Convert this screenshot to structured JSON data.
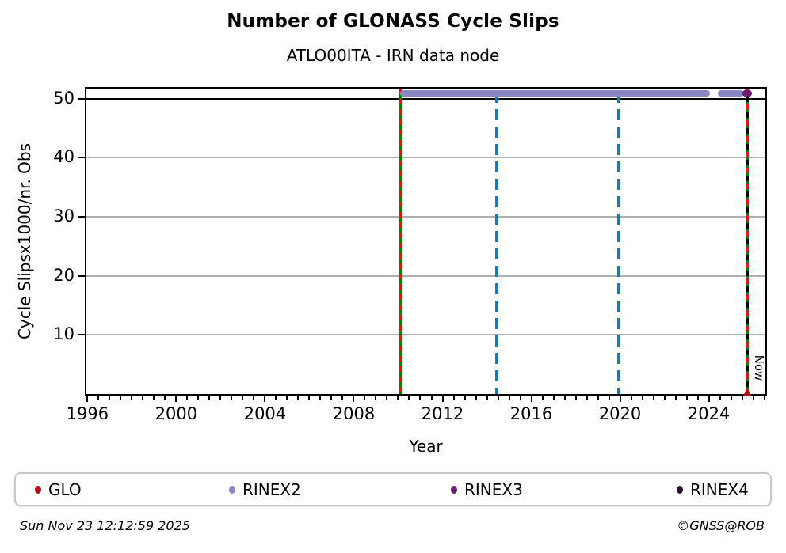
{
  "header": {
    "title": "Number of GLONASS Cycle Slips",
    "subtitle": "ATLO00ITA - IRN data node"
  },
  "footer": {
    "timestamp": "Sun Nov 23 12:12:59 2025",
    "credit": "©GNSS@ROB"
  },
  "legend": {
    "items": [
      {
        "label": "GLO",
        "color": "#b01015"
      },
      {
        "label": "RINEX2",
        "color": "#8a87c5"
      },
      {
        "label": "RINEX3",
        "color": "#6c1d6e"
      },
      {
        "label": "RINEX4",
        "color": "#2e0f35"
      }
    ]
  },
  "chart_data": {
    "type": "scatter",
    "title": "Number of GLONASS Cycle Slips",
    "subtitle": "ATLO00ITA - IRN data node",
    "xlabel": "Year",
    "ylabel": "Cycle Slipsx1000/nr. Obs",
    "xlim": [
      1995.95,
      2026.55
    ],
    "ylim": [
      0,
      51.7
    ],
    "x_major_ticks": [
      1996,
      2000,
      2004,
      2008,
      2012,
      2016,
      2020,
      2024
    ],
    "x_minor_step": 0.5,
    "y_major_ticks": [
      10,
      20,
      30,
      40,
      50
    ],
    "grid": "horizontal",
    "grid_color": "#b0b0b0",
    "hlines": [
      {
        "y": 50,
        "color": "#000000"
      }
    ],
    "vlines": [
      {
        "x": 2010.1,
        "style": "green-red",
        "name": "event-line-2010"
      },
      {
        "x": 2014.45,
        "style": "blue-dashed",
        "name": "event-line-2014"
      },
      {
        "x": 2019.95,
        "style": "blue-dashed",
        "name": "event-line-2020"
      },
      {
        "x": 2025.73,
        "style": "green-red-black",
        "name": "now-line",
        "label": "Now"
      }
    ],
    "line_colors": {
      "green": "#008000",
      "red": "#cc2020",
      "blue": "#1f77b4",
      "black": "#000000"
    },
    "series": [
      {
        "name": "RINEX2",
        "color": "#8a87c5",
        "marker": "thick-band",
        "y": 50.9,
        "segments": [
          [
            2010.1,
            2024.05
          ],
          [
            2024.42,
            2025.6
          ]
        ]
      },
      {
        "name": "RINEX3",
        "color": "#6c1d6e",
        "marker": "dot",
        "points": [
          [
            2025.73,
            50.9
          ]
        ]
      },
      {
        "name": "GLO",
        "color": "#b01015",
        "marker": "triangle-up",
        "points": [
          [
            2025.73,
            0.3
          ]
        ]
      },
      {
        "name": "RINEX4",
        "color": "#2e0f35",
        "marker": "dot",
        "points": []
      }
    ],
    "now_label": "Now"
  }
}
